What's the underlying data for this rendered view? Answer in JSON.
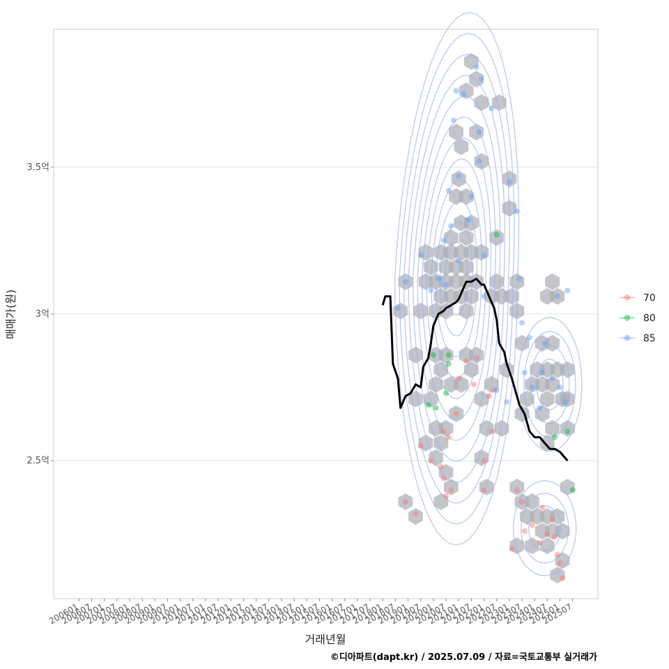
{
  "chart_data": {
    "type": "scatter",
    "xlabel": "거래년월",
    "ylabel": "매매가(원)",
    "caption": "©디아파트(dapt.kr) / 2025.07.09 / 자료=국토교통부 실거래가",
    "x_ticks": [
      "200601",
      "200607",
      "200701",
      "200707",
      "200801",
      "200807",
      "200901",
      "200907",
      "201001",
      "201007",
      "201101",
      "201107",
      "201201",
      "201207",
      "201301",
      "201307",
      "201401",
      "201407",
      "201501",
      "201507",
      "201601",
      "201607",
      "201701",
      "201707",
      "201801",
      "201807",
      "201901",
      "201907",
      "202001",
      "202007",
      "202101",
      "202107",
      "202201",
      "202207",
      "202301",
      "202307",
      "202401",
      "202407",
      "202501",
      "202507"
    ],
    "y_ticks": [
      {
        "value": 2.5,
        "label": "2.5억"
      },
      {
        "value": 3.0,
        "label": "3억"
      },
      {
        "value": 3.5,
        "label": "3.5억"
      }
    ],
    "ylim": [
      2.03,
      3.97
    ],
    "xlim_years": [
      2005.0,
      2026.5
    ],
    "grid": true,
    "legend_position": "right",
    "legend": [
      {
        "label": "70",
        "color": "#F8766D"
      },
      {
        "label": "80",
        "color": "#00BA38"
      },
      {
        "label": "85",
        "color": "#619CFF"
      }
    ],
    "series": [
      {
        "name": "70",
        "color": "#F8766D",
        "points": [
          [
            2018.9,
            2.36
          ],
          [
            2019.3,
            2.32
          ],
          [
            2019.5,
            2.55
          ],
          [
            2019.9,
            2.5
          ],
          [
            2020.3,
            2.48
          ],
          [
            2020.4,
            2.44
          ],
          [
            2020.5,
            2.38
          ],
          [
            2020.7,
            2.4
          ],
          [
            2020.4,
            2.6
          ],
          [
            2020.6,
            2.58
          ],
          [
            2020.9,
            2.66
          ],
          [
            2021.0,
            2.78
          ],
          [
            2021.3,
            2.84
          ],
          [
            2021.7,
            2.85
          ],
          [
            2021.6,
            2.76
          ],
          [
            2022.0,
            2.5
          ],
          [
            2022.0,
            2.4
          ],
          [
            2022.2,
            2.72
          ],
          [
            2022.4,
            2.74
          ],
          [
            2022.3,
            2.6
          ],
          [
            2023.1,
            2.2
          ],
          [
            2023.3,
            2.4
          ],
          [
            2023.5,
            2.36
          ],
          [
            2023.6,
            2.26
          ],
          [
            2023.9,
            2.28
          ],
          [
            2024.2,
            2.22
          ],
          [
            2024.3,
            2.34
          ],
          [
            2024.5,
            2.25
          ],
          [
            2024.7,
            2.3
          ],
          [
            2024.8,
            2.24
          ],
          [
            2024.9,
            2.18
          ],
          [
            2025.0,
            2.15
          ],
          [
            2025.1,
            2.1
          ]
        ]
      },
      {
        "name": "80",
        "color": "#00BA38",
        "points": [
          [
            2019.8,
            2.69
          ],
          [
            2020.0,
            2.86
          ],
          [
            2020.1,
            2.68
          ],
          [
            2020.6,
            2.86
          ],
          [
            2020.6,
            2.83
          ],
          [
            2020.5,
            2.73
          ],
          [
            2022.5,
            3.27
          ],
          [
            2024.8,
            2.58
          ],
          [
            2025.3,
            2.6
          ],
          [
            2025.5,
            2.4
          ]
        ]
      },
      {
        "name": "85",
        "color": "#619CFF",
        "points": [
          [
            2018.6,
            3.02
          ],
          [
            2018.9,
            3.11
          ],
          [
            2019.5,
            3.2
          ],
          [
            2019.9,
            3.08
          ],
          [
            2020.2,
            3.12
          ],
          [
            2020.4,
            3.25
          ],
          [
            2020.5,
            3.1
          ],
          [
            2020.6,
            3.42
          ],
          [
            2020.7,
            3.3
          ],
          [
            2020.8,
            3.66
          ],
          [
            2020.9,
            3.76
          ],
          [
            2021.0,
            3.47
          ],
          [
            2021.0,
            3.18
          ],
          [
            2021.2,
            3.75
          ],
          [
            2021.4,
            3.32
          ],
          [
            2021.5,
            3.4
          ],
          [
            2021.7,
            3.84
          ],
          [
            2021.8,
            3.62
          ],
          [
            2021.8,
            3.52
          ],
          [
            2021.9,
            3.8
          ],
          [
            2022.0,
            3.2
          ],
          [
            2022.0,
            3.06
          ],
          [
            2022.3,
            3.7
          ],
          [
            2022.5,
            2.74
          ],
          [
            2022.9,
            2.7
          ],
          [
            2023.0,
            3.45
          ],
          [
            2023.3,
            3.35
          ],
          [
            2023.4,
            3.12
          ],
          [
            2023.5,
            2.97
          ],
          [
            2023.6,
            2.8
          ],
          [
            2023.8,
            2.92
          ],
          [
            2023.9,
            2.75
          ],
          [
            2024.2,
            2.68
          ],
          [
            2024.3,
            2.8
          ],
          [
            2024.4,
            2.9
          ],
          [
            2024.7,
            2.78
          ],
          [
            2024.9,
            3.06
          ],
          [
            2025.0,
            2.75
          ],
          [
            2025.2,
            2.7
          ],
          [
            2025.3,
            3.08
          ]
        ]
      }
    ],
    "trend_line": [
      [
        2018.0,
        3.03
      ],
      [
        2018.1,
        3.06
      ],
      [
        2018.3,
        3.06
      ],
      [
        2018.4,
        2.83
      ],
      [
        2018.6,
        2.78
      ],
      [
        2018.7,
        2.68
      ],
      [
        2018.9,
        2.72
      ],
      [
        2019.1,
        2.73
      ],
      [
        2019.3,
        2.76
      ],
      [
        2019.5,
        2.75
      ],
      [
        2019.6,
        2.82
      ],
      [
        2019.8,
        2.85
      ],
      [
        2019.9,
        2.9
      ],
      [
        2020.0,
        2.96
      ],
      [
        2020.2,
        3.0
      ],
      [
        2020.4,
        3.01
      ],
      [
        2020.5,
        3.02
      ],
      [
        2020.7,
        3.03
      ],
      [
        2020.9,
        3.04
      ],
      [
        2021.0,
        3.05
      ],
      [
        2021.1,
        3.07
      ],
      [
        2021.3,
        3.11
      ],
      [
        2021.5,
        3.11
      ],
      [
        2021.7,
        3.12
      ],
      [
        2021.9,
        3.1
      ],
      [
        2022.0,
        3.1
      ],
      [
        2022.2,
        3.06
      ],
      [
        2022.4,
        3.02
      ],
      [
        2022.5,
        2.98
      ],
      [
        2022.6,
        2.9
      ],
      [
        2022.8,
        2.87
      ],
      [
        2022.9,
        2.83
      ],
      [
        2023.1,
        2.78
      ],
      [
        2023.3,
        2.72
      ],
      [
        2023.4,
        2.69
      ],
      [
        2023.6,
        2.66
      ],
      [
        2023.7,
        2.63
      ],
      [
        2023.8,
        2.6
      ],
      [
        2024.0,
        2.58
      ],
      [
        2024.2,
        2.58
      ],
      [
        2024.4,
        2.56
      ],
      [
        2024.6,
        2.54
      ],
      [
        2024.8,
        2.54
      ],
      [
        2025.0,
        2.53
      ],
      [
        2025.1,
        2.52
      ],
      [
        2025.3,
        2.5
      ]
    ],
    "hex_bins": [
      [
        2021.5,
        3.86
      ],
      [
        2021.3,
        3.76
      ],
      [
        2021.7,
        3.8
      ],
      [
        2021.9,
        3.72
      ],
      [
        2022.6,
        3.72
      ],
      [
        2020.9,
        3.62
      ],
      [
        2021.7,
        3.62
      ],
      [
        2021.1,
        3.57
      ],
      [
        2021.9,
        3.52
      ],
      [
        2021.0,
        3.46
      ],
      [
        2023.0,
        3.46
      ],
      [
        2020.9,
        3.4
      ],
      [
        2021.3,
        3.4
      ],
      [
        2023.0,
        3.36
      ],
      [
        2021.1,
        3.31
      ],
      [
        2021.5,
        3.31
      ],
      [
        2020.7,
        3.26
      ],
      [
        2021.3,
        3.26
      ],
      [
        2022.5,
        3.26
      ],
      [
        2019.7,
        3.21
      ],
      [
        2020.3,
        3.21
      ],
      [
        2020.7,
        3.21
      ],
      [
        2021.1,
        3.21
      ],
      [
        2021.5,
        3.21
      ],
      [
        2021.9,
        3.21
      ],
      [
        2019.9,
        3.16
      ],
      [
        2020.5,
        3.16
      ],
      [
        2020.9,
        3.16
      ],
      [
        2021.3,
        3.16
      ],
      [
        2018.9,
        3.11
      ],
      [
        2019.7,
        3.11
      ],
      [
        2020.1,
        3.11
      ],
      [
        2020.5,
        3.11
      ],
      [
        2020.9,
        3.11
      ],
      [
        2021.3,
        3.11
      ],
      [
        2021.7,
        3.11
      ],
      [
        2022.5,
        3.11
      ],
      [
        2023.3,
        3.11
      ],
      [
        2024.7,
        3.11
      ],
      [
        2020.3,
        3.06
      ],
      [
        2020.7,
        3.06
      ],
      [
        2021.1,
        3.06
      ],
      [
        2021.5,
        3.06
      ],
      [
        2022.3,
        3.06
      ],
      [
        2022.7,
        3.06
      ],
      [
        2023.1,
        3.06
      ],
      [
        2024.5,
        3.06
      ],
      [
        2024.9,
        3.06
      ],
      [
        2018.7,
        3.01
      ],
      [
        2019.5,
        3.01
      ],
      [
        2020.1,
        3.01
      ],
      [
        2020.5,
        3.01
      ],
      [
        2021.3,
        3.01
      ],
      [
        2023.3,
        3.01
      ],
      [
        2019.3,
        2.86
      ],
      [
        2020.1,
        2.86
      ],
      [
        2020.5,
        2.86
      ],
      [
        2021.3,
        2.86
      ],
      [
        2021.7,
        2.86
      ],
      [
        2023.5,
        2.9
      ],
      [
        2024.3,
        2.9
      ],
      [
        2024.7,
        2.9
      ],
      [
        2020.3,
        2.81
      ],
      [
        2021.5,
        2.81
      ],
      [
        2022.9,
        2.81
      ],
      [
        2024.1,
        2.81
      ],
      [
        2024.5,
        2.81
      ],
      [
        2024.9,
        2.81
      ],
      [
        2025.3,
        2.81
      ],
      [
        2020.1,
        2.76
      ],
      [
        2020.7,
        2.76
      ],
      [
        2021.1,
        2.76
      ],
      [
        2022.3,
        2.76
      ],
      [
        2023.9,
        2.76
      ],
      [
        2024.3,
        2.76
      ],
      [
        2024.7,
        2.76
      ],
      [
        2019.9,
        2.71
      ],
      [
        2021.9,
        2.71
      ],
      [
        2023.7,
        2.71
      ],
      [
        2024.5,
        2.71
      ],
      [
        2025.1,
        2.71
      ],
      [
        2025.3,
        2.71
      ],
      [
        2019.3,
        2.71
      ],
      [
        2020.9,
        2.66
      ],
      [
        2023.5,
        2.66
      ],
      [
        2024.3,
        2.66
      ],
      [
        2020.1,
        2.61
      ],
      [
        2020.5,
        2.61
      ],
      [
        2022.1,
        2.61
      ],
      [
        2022.7,
        2.61
      ],
      [
        2024.7,
        2.61
      ],
      [
        2025.3,
        2.61
      ],
      [
        2019.7,
        2.56
      ],
      [
        2020.3,
        2.56
      ],
      [
        2024.5,
        2.56
      ],
      [
        2020.1,
        2.51
      ],
      [
        2021.9,
        2.51
      ],
      [
        2020.5,
        2.46
      ],
      [
        2020.7,
        2.41
      ],
      [
        2022.1,
        2.41
      ],
      [
        2023.3,
        2.41
      ],
      [
        2025.3,
        2.41
      ],
      [
        2018.9,
        2.36
      ],
      [
        2020.3,
        2.36
      ],
      [
        2023.5,
        2.36
      ],
      [
        2023.9,
        2.36
      ],
      [
        2019.3,
        2.31
      ],
      [
        2023.7,
        2.31
      ],
      [
        2024.1,
        2.31
      ],
      [
        2024.5,
        2.31
      ],
      [
        2024.9,
        2.31
      ],
      [
        2024.3,
        2.26
      ],
      [
        2024.7,
        2.26
      ],
      [
        2025.1,
        2.26
      ],
      [
        2023.3,
        2.21
      ],
      [
        2023.9,
        2.21
      ],
      [
        2024.5,
        2.21
      ],
      [
        2025.1,
        2.16
      ],
      [
        2024.9,
        2.11
      ]
    ],
    "density_contours": {
      "count": 12,
      "center_year": 2020.9,
      "center_value": 3.12
    }
  }
}
